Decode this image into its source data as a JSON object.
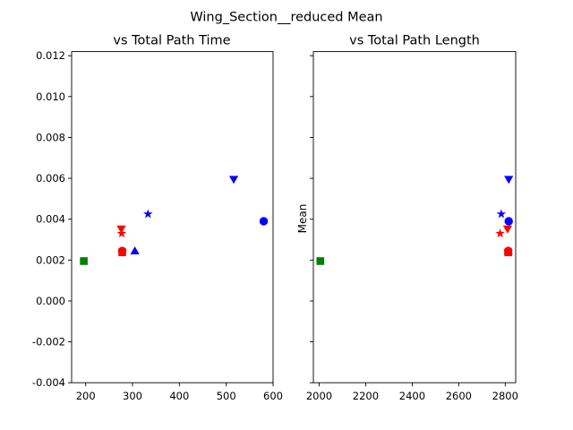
{
  "figure": {
    "suptitle": "Wing_Section__reduced Mean"
  },
  "chart_data": [
    {
      "type": "scatter",
      "title": "vs Total Path Time",
      "xlabel": "",
      "ylabel": "",
      "xlim": [
        170,
        600
      ],
      "ylim": [
        -0.004,
        0.0122
      ],
      "xticks": [
        200,
        300,
        400,
        500,
        600
      ],
      "xtick_labels": [
        "200",
        "300",
        "400",
        "500",
        "600"
      ],
      "yticks": [
        -0.004,
        -0.002,
        0.0,
        0.002,
        0.004,
        0.006,
        0.008,
        0.01,
        0.012
      ],
      "ytick_labels": [
        "-0.004",
        "-0.002",
        "0.000",
        "0.002",
        "0.004",
        "0.006",
        "0.008",
        "0.010",
        "0.012"
      ],
      "grid": false,
      "points": [
        {
          "x": 196,
          "y": 0.00195,
          "color": "#008000",
          "marker": "square"
        },
        {
          "x": 278,
          "y": 0.00238,
          "color": "#ff0000",
          "marker": "square"
        },
        {
          "x": 278,
          "y": 0.00245,
          "color": "#ff0000",
          "marker": "circle"
        },
        {
          "x": 277,
          "y": 0.0033,
          "color": "#ff0000",
          "marker": "star"
        },
        {
          "x": 276,
          "y": 0.00352,
          "color": "#ff0000",
          "marker": "triangle-down"
        },
        {
          "x": 305,
          "y": 0.00245,
          "color": "#0000ff",
          "marker": "triangle-up"
        },
        {
          "x": 333,
          "y": 0.00425,
          "color": "#0000ff",
          "marker": "star"
        },
        {
          "x": 516,
          "y": 0.00595,
          "color": "#0000ff",
          "marker": "triangle-down"
        },
        {
          "x": 580,
          "y": 0.0039,
          "color": "#0000ff",
          "marker": "circle"
        }
      ]
    },
    {
      "type": "scatter",
      "title": "vs Total Path Length",
      "xlabel": "",
      "ylabel": "Mean",
      "xlim": [
        1975,
        2845
      ],
      "ylim": [
        -0.004,
        0.0122
      ],
      "xticks": [
        2000,
        2200,
        2400,
        2600,
        2800
      ],
      "xtick_labels": [
        "2000",
        "2200",
        "2400",
        "2600",
        "2800"
      ],
      "yticks": [
        -0.004,
        -0.002,
        0.0,
        0.002,
        0.004,
        0.006,
        0.008,
        0.01,
        0.012
      ],
      "ytick_labels": [],
      "grid": false,
      "points": [
        {
          "x": 2005,
          "y": 0.00195,
          "color": "#008000",
          "marker": "square"
        },
        {
          "x": 2778,
          "y": 0.0033,
          "color": "#ff0000",
          "marker": "star"
        },
        {
          "x": 2783,
          "y": 0.00425,
          "color": "#0000ff",
          "marker": "star"
        },
        {
          "x": 2810,
          "y": 0.00352,
          "color": "#ff0000",
          "marker": "triangle-down"
        },
        {
          "x": 2813,
          "y": 0.00245,
          "color": "#0000ff",
          "marker": "triangle-up"
        },
        {
          "x": 2813,
          "y": 0.00238,
          "color": "#ff0000",
          "marker": "square"
        },
        {
          "x": 2813,
          "y": 0.00245,
          "color": "#ff0000",
          "marker": "circle"
        },
        {
          "x": 2815,
          "y": 0.0039,
          "color": "#0000ff",
          "marker": "circle"
        },
        {
          "x": 2815,
          "y": 0.00595,
          "color": "#0000ff",
          "marker": "triangle-down"
        }
      ]
    }
  ]
}
